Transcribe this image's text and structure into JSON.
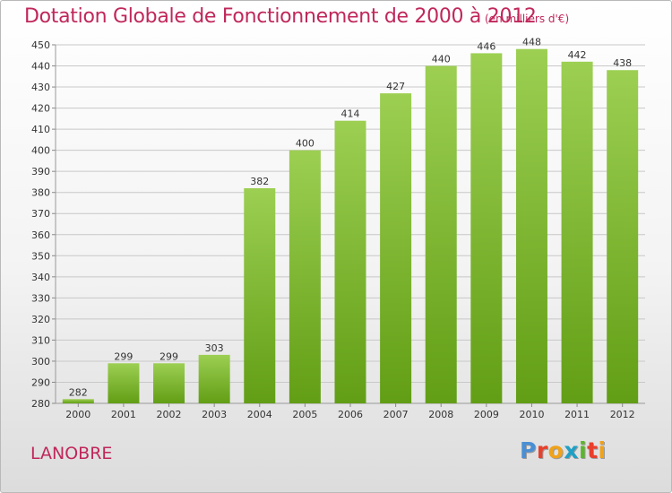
{
  "header": {
    "title": "Dotation Globale de Fonctionnement de 2000 à 2012",
    "unit": "(en milliers d'€)"
  },
  "footer": {
    "commune": "LANOBRE",
    "logo": "Proxiti"
  },
  "colors": {
    "title": "#c0275a",
    "bar_light": "#9ccf52",
    "bar_dark": "#629e15",
    "grid": "#c8c8c8",
    "logo_letters": [
      "#4a8fd4",
      "#e8402c",
      "#f0a21a",
      "#1fa0c4",
      "#5ab82a",
      "#e8402c",
      "#f0a21a"
    ]
  },
  "chart_data": {
    "type": "bar",
    "title": "Dotation Globale de Fonctionnement de 2000 à 2012",
    "subtitle": "(en milliers d'€)",
    "categories": [
      "2000",
      "2001",
      "2002",
      "2003",
      "2004",
      "2005",
      "2006",
      "2007",
      "2008",
      "2009",
      "2010",
      "2011",
      "2012"
    ],
    "values": [
      282,
      299,
      299,
      303,
      382,
      400,
      414,
      427,
      440,
      446,
      448,
      442,
      438
    ],
    "ylim": [
      280,
      450
    ],
    "yticks": [
      280,
      290,
      300,
      310,
      320,
      330,
      340,
      350,
      360,
      370,
      380,
      390,
      400,
      410,
      420,
      430,
      440,
      450
    ],
    "grid": true,
    "xlabel": "",
    "ylabel": ""
  }
}
